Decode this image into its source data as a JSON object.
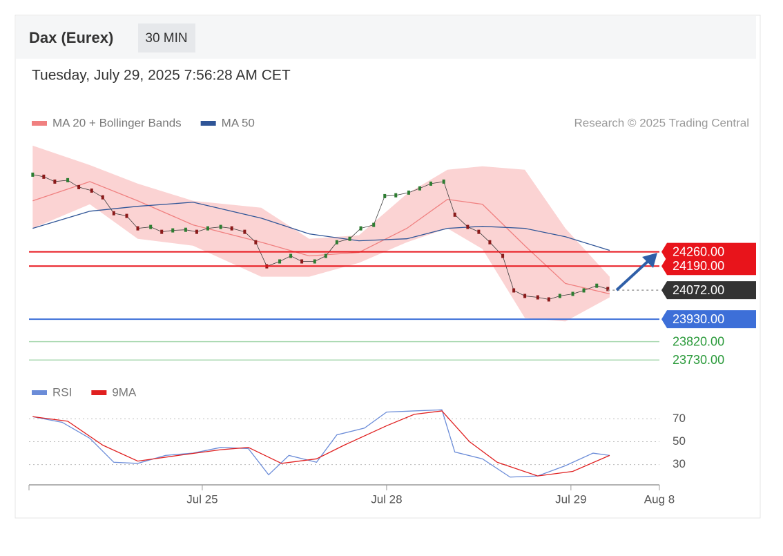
{
  "chart_data": [
    {
      "type": "line",
      "title": "Dax (Eurex)",
      "interval": "30 MIN",
      "timestamp": "Tuesday, July 29, 2025 7:56:28 AM CET",
      "credit": "Research © 2025 Trading Central",
      "xlim": [
        0.06,
        3.48
      ],
      "ylim": [
        23670,
        24800
      ],
      "price": {
        "color": "#3a3a3a",
        "x": [
          0.08,
          0.14,
          0.2,
          0.27,
          0.33,
          0.4,
          0.46,
          0.52,
          0.59,
          0.65,
          0.72,
          0.78,
          0.84,
          0.91,
          0.97,
          1.03,
          1.1,
          1.16,
          1.23,
          1.29,
          1.35,
          1.42,
          1.48,
          1.54,
          1.61,
          1.67,
          1.73,
          1.8,
          1.86,
          1.93,
          1.99,
          2.05,
          2.12,
          2.18,
          2.24,
          2.31,
          2.37,
          2.44,
          2.5,
          2.56,
          2.63,
          2.69,
          2.75,
          2.82,
          2.88,
          2.94,
          3.01,
          3.07,
          3.14,
          3.2
        ],
        "values": [
          24638,
          24628,
          24604,
          24611,
          24577,
          24560,
          24527,
          24449,
          24436,
          24375,
          24382,
          24358,
          24365,
          24368,
          24358,
          24375,
          24382,
          24375,
          24358,
          24307,
          24189,
          24213,
          24240,
          24213,
          24213,
          24240,
          24307,
          24324,
          24375,
          24392,
          24533,
          24537,
          24550,
          24571,
          24594,
          24604,
          24442,
          24382,
          24358,
          24307,
          24240,
          24071,
          24044,
          24037,
          24027,
          24044,
          24054,
          24071,
          24094,
          24078
        ]
      },
      "series": [
        {
          "name": "MA 20 + Bollinger Bands",
          "color": "#f08080",
          "band_color": "#fbd3d3",
          "x": [
            0.08,
            0.39,
            0.65,
            0.95,
            1.32,
            1.58,
            1.85,
            2.11,
            2.33,
            2.52,
            2.75,
            2.97,
            3.21
          ],
          "values": [
            24510,
            24604,
            24510,
            24392,
            24307,
            24240,
            24257,
            24375,
            24517,
            24493,
            24290,
            24105,
            24054
          ],
          "upper": [
            24780,
            24685,
            24594,
            24510,
            24476,
            24324,
            24341,
            24544,
            24662,
            24679,
            24662,
            24375,
            24138
          ],
          "lower": [
            24375,
            24493,
            24324,
            24290,
            24138,
            24138,
            24206,
            24307,
            24375,
            24274,
            23936,
            23919,
            24037
          ]
        },
        {
          "name": "MA 50",
          "color": "#2f5597",
          "x": [
            0.08,
            0.39,
            0.65,
            0.95,
            1.32,
            1.58,
            1.85,
            2.11,
            2.33,
            2.52,
            2.75,
            2.97,
            3.21
          ],
          "values": [
            24375,
            24459,
            24483,
            24503,
            24425,
            24348,
            24314,
            24324,
            24375,
            24385,
            24375,
            24334,
            24267
          ]
        }
      ],
      "levels": [
        {
          "value": 24260,
          "label": "24260.00",
          "color": "#e8141b",
          "box": true,
          "style": "solid"
        },
        {
          "value": 24190,
          "label": "24190.00",
          "color": "#e8141b",
          "box": true,
          "style": "solid"
        },
        {
          "value": 24072,
          "label": "24072.00",
          "color": "#333333",
          "box": true,
          "style": "dotted"
        },
        {
          "value": 23930,
          "label": "23930.00",
          "color": "#3d6fd8",
          "box": true,
          "style": "solid"
        },
        {
          "value": 23820,
          "label": "23820.00",
          "color": "#2a9a3a",
          "box": false,
          "style": "solid"
        },
        {
          "value": 23730,
          "label": "23730.00",
          "color": "#2a9a3a",
          "box": false,
          "style": "solid"
        }
      ]
    },
    {
      "type": "line",
      "xlim": [
        0.06,
        3.48
      ],
      "ylim": [
        14,
        80
      ],
      "yticks": [
        30,
        50,
        70
      ],
      "xticks": [
        {
          "value": 1,
          "label": "Jul 25"
        },
        {
          "value": 2,
          "label": "Jul 28"
        },
        {
          "value": 3,
          "label": "Jul 29"
        },
        {
          "value": 3.48,
          "label": "Aug 8"
        }
      ],
      "series": [
        {
          "name": "RSI",
          "color": "#6b8cd8",
          "x": [
            0.08,
            0.24,
            0.39,
            0.52,
            0.65,
            0.8,
            0.95,
            1.1,
            1.25,
            1.36,
            1.47,
            1.62,
            1.73,
            1.88,
            2.0,
            2.15,
            2.3,
            2.37,
            2.52,
            2.67,
            2.82,
            2.97,
            3.12,
            3.21
          ],
          "values": [
            72,
            67,
            53,
            32,
            31,
            38,
            40,
            45,
            44,
            21,
            38,
            32,
            56,
            62,
            76,
            77,
            78,
            41,
            35,
            19,
            20,
            29,
            40,
            38
          ]
        },
        {
          "name": "9MA",
          "color": "#e02020",
          "x": [
            0.08,
            0.27,
            0.46,
            0.65,
            0.87,
            1.1,
            1.25,
            1.43,
            1.62,
            1.77,
            2.0,
            2.15,
            2.3,
            2.45,
            2.6,
            2.82,
            3.01,
            3.21
          ],
          "values": [
            72,
            68,
            47,
            33,
            38,
            43,
            45,
            31,
            35,
            47,
            64,
            74,
            77,
            50,
            32,
            20,
            24,
            38
          ]
        }
      ]
    }
  ]
}
